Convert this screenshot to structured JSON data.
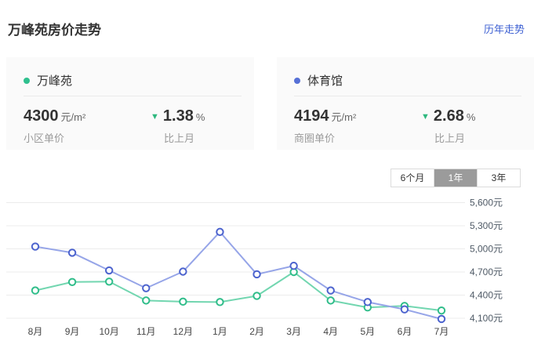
{
  "page": {
    "title": "万峰苑房价走势",
    "history_link": "历年走势"
  },
  "colors": {
    "link": "#3c5fd2",
    "down_arrow": "#2eb87e",
    "card_background": "#fafafa",
    "selected_tab_background": "#9b9b9b"
  },
  "cards": [
    {
      "name": "万峰苑",
      "dot_color": "#2fc08e",
      "price": "4300",
      "price_unit": "元/m²",
      "price_label": "小区单价",
      "change_direction": "down",
      "change_arrow": "▼",
      "change_value": "1.38",
      "change_unit": "%",
      "change_label": "比上月"
    },
    {
      "name": "体育馆",
      "dot_color": "#5670d6",
      "price": "4194",
      "price_unit": "元/m²",
      "price_label": "商圈单价",
      "change_direction": "down",
      "change_arrow": "▼",
      "change_value": "2.68",
      "change_unit": "%",
      "change_label": "比上月"
    }
  ],
  "tabs": [
    {
      "label": "6个月",
      "selected": false
    },
    {
      "label": "1年",
      "selected": true
    },
    {
      "label": "3年",
      "selected": false
    }
  ],
  "chart_data": {
    "type": "line",
    "title": "",
    "xlabel": "",
    "ylabel": "",
    "grid": true,
    "legend_position": "none",
    "categories": [
      "8月",
      "9月",
      "10月",
      "11月",
      "12月",
      "1月",
      "2月",
      "3月",
      "4月",
      "5月",
      "6月",
      "7月"
    ],
    "yticks": [
      4100,
      4400,
      4700,
      5000,
      5300,
      5600
    ],
    "ytick_labels": [
      "4,100元",
      "4,400元",
      "4,700元",
      "5,000元",
      "5,300元",
      "5,600元"
    ],
    "ylim": [
      4000,
      5700
    ],
    "series": [
      {
        "name": "万峰苑",
        "color": "#30bd8a",
        "line_color": "#72d6b0",
        "values": [
          4460,
          4570,
          4575,
          4330,
          4315,
          4310,
          4390,
          4700,
          4330,
          4240,
          4260,
          4200
        ]
      },
      {
        "name": "体育馆",
        "color": "#4c63ce",
        "line_color": "#96a5e8",
        "values": [
          5030,
          4950,
          4720,
          4490,
          4705,
          5220,
          4670,
          4780,
          4460,
          4310,
          4215,
          4090
        ]
      }
    ]
  }
}
